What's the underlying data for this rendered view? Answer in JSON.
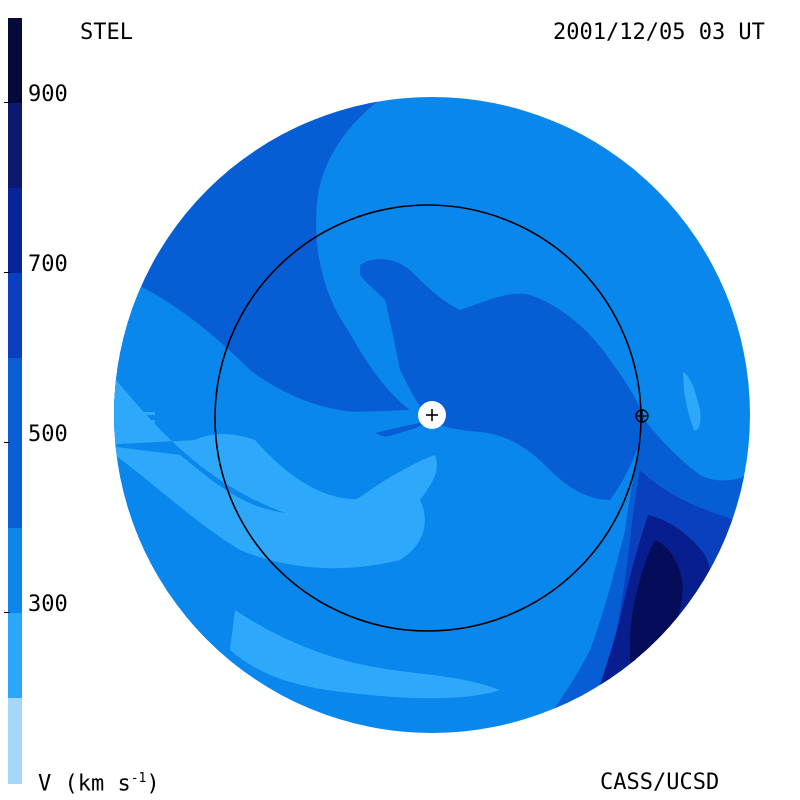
{
  "header": {
    "left_label": "STEL",
    "right_label": "2001/12/05 03 UT"
  },
  "footer": {
    "left_label": "V (km s",
    "left_label_sup": "-1",
    "left_label_end": ")",
    "right_label": "CASS/UCSD"
  },
  "colorbar": {
    "ticks": [
      "900",
      "700",
      "500",
      "300"
    ],
    "colors": [
      "#050a3a",
      "#0a1a6e",
      "#08249a",
      "#0a3fbf",
      "#0b5fd6",
      "#0d86ec",
      "#2aa6fa",
      "#a6d7fb"
    ]
  },
  "map": {
    "colors": {
      "v250": "#2ea8fb",
      "v350": "#0a87ec",
      "v450": "#075ed4",
      "v550": "#0a40be",
      "v650": "#081e8e",
      "v750": "#050c5a",
      "v850": "#030733"
    },
    "markers": {
      "sun": "+",
      "earth": "earth-symbol"
    }
  }
}
